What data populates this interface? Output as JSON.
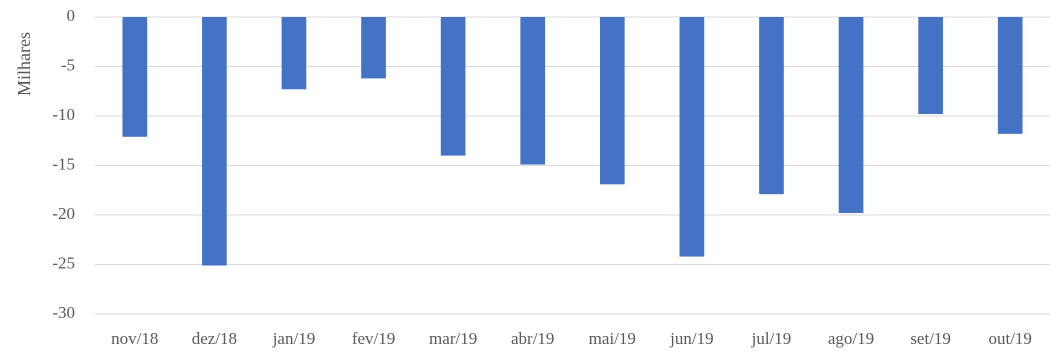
{
  "chart_data": {
    "type": "bar",
    "title": "",
    "xlabel": "",
    "ylabel": "Milhares",
    "categories": [
      "nov/18",
      "dez/18",
      "jan/19",
      "fev/19",
      "mar/19",
      "abr/19",
      "mai/19",
      "jun/19",
      "jul/19",
      "ago/19",
      "set/19",
      "out/19"
    ],
    "values": [
      -12.1,
      -25.1,
      -7.3,
      -6.2,
      -14.0,
      -14.9,
      -16.9,
      -24.2,
      -17.9,
      -19.8,
      -9.8,
      -11.8
    ],
    "ylim": [
      -30,
      0
    ],
    "yticks": [
      0,
      -5,
      -10,
      -15,
      -20,
      -25,
      -30
    ],
    "grid": true,
    "legend": "none",
    "colors": {
      "bar": "#4472C4",
      "grid": "#D9D9D9",
      "text": "#595959"
    }
  }
}
